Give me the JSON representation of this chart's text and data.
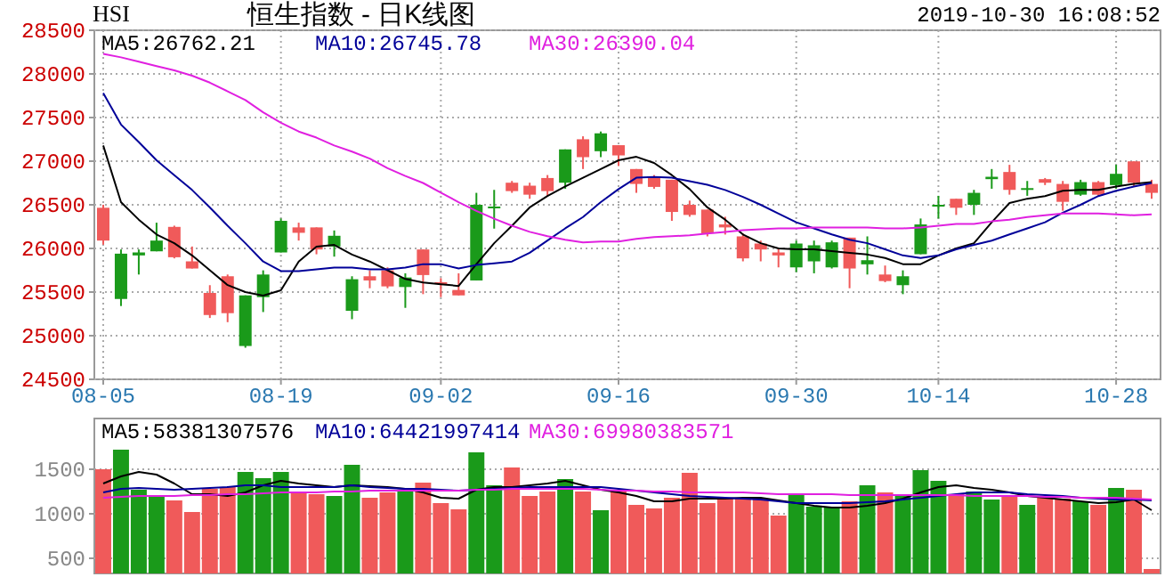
{
  "chart_data": [
    {
      "type": "candlestick",
      "title": "恒生指数 - 日K线图",
      "annotations": [
        "HSI",
        "2019-10-30 16:08:52"
      ],
      "categories": [
        "08-05",
        null,
        null,
        null,
        null,
        null,
        null,
        null,
        null,
        null,
        "08-19",
        null,
        null,
        null,
        null,
        null,
        null,
        null,
        null,
        "09-02",
        null,
        null,
        null,
        null,
        null,
        null,
        null,
        null,
        null,
        "09-16",
        null,
        null,
        null,
        null,
        null,
        null,
        null,
        null,
        null,
        "09-30",
        null,
        null,
        null,
        null,
        null,
        null,
        null,
        "10-14",
        null,
        null,
        null,
        null,
        null,
        null,
        null,
        null,
        null,
        "10-28",
        null,
        null
      ],
      "ohlc": [
        [
          26466,
          26500,
          26043,
          26090
        ],
        [
          25421,
          25988,
          25340,
          25940
        ],
        [
          25920,
          25988,
          25701,
          25954
        ],
        [
          25967,
          26295,
          25967,
          26090
        ],
        [
          26247,
          26261,
          25886,
          25899
        ],
        [
          25852,
          26022,
          25770,
          25770
        ],
        [
          25490,
          25579,
          25203,
          25237
        ],
        [
          25681,
          25701,
          25155,
          25258
        ],
        [
          24882,
          25462,
          24862,
          25462
        ],
        [
          25442,
          25749,
          25271,
          25701
        ],
        [
          25954,
          26343,
          25954,
          26316
        ],
        [
          26241,
          26295,
          26090,
          26179
        ],
        [
          26241,
          26241,
          25933,
          25988
        ],
        [
          26022,
          26206,
          25906,
          26145
        ],
        [
          25285,
          25681,
          25189,
          25647
        ],
        [
          25681,
          25749,
          25544,
          25633
        ],
        [
          25749,
          25783,
          25544,
          25565
        ],
        [
          25558,
          25715,
          25319,
          25667
        ],
        [
          25988,
          25988,
          25476,
          25695
        ],
        [
          25613,
          25660,
          25442,
          25592
        ],
        [
          25524,
          25715,
          25462,
          25462
        ],
        [
          25633,
          26637,
          25633,
          26500
        ],
        [
          26466,
          26671,
          26227,
          26480
        ],
        [
          26753,
          26773,
          26637,
          26657
        ],
        [
          26719,
          26753,
          26569,
          26616
        ],
        [
          26807,
          26841,
          26602,
          26657
        ],
        [
          26753,
          27135,
          26684,
          27135
        ],
        [
          27251,
          27285,
          26910,
          27046
        ],
        [
          27114,
          27340,
          27046,
          27319
        ],
        [
          27183,
          27183,
          26944,
          27066
        ],
        [
          26910,
          26910,
          26637,
          26739
        ],
        [
          26821,
          26841,
          26684,
          26705
        ],
        [
          26787,
          26787,
          26316,
          26418
        ],
        [
          26500,
          26548,
          26363,
          26384
        ],
        [
          26445,
          26445,
          26138,
          26172
        ],
        [
          26275,
          26363,
          26159,
          26241
        ],
        [
          26138,
          26172,
          25852,
          25886
        ],
        [
          26056,
          26090,
          25852,
          25988
        ],
        [
          25954,
          26002,
          25783,
          25920
        ],
        [
          25783,
          26090,
          25729,
          26056
        ],
        [
          25852,
          26090,
          25715,
          26036
        ],
        [
          25783,
          26090,
          25770,
          26070
        ],
        [
          26124,
          26124,
          25544,
          25770
        ],
        [
          25818,
          26138,
          25701,
          25865
        ],
        [
          25701,
          25804,
          25613,
          25626
        ],
        [
          25579,
          25749,
          25476,
          25681
        ],
        [
          25934,
          26343,
          25933,
          26275
        ],
        [
          26480,
          26603,
          26343,
          26500
        ],
        [
          26569,
          26569,
          26384,
          26466
        ],
        [
          26500,
          26671,
          26384,
          26637
        ],
        [
          26794,
          26910,
          26684,
          26821
        ],
        [
          26876,
          26958,
          26616,
          26671
        ],
        [
          26671,
          26773,
          26603,
          26691
        ],
        [
          26794,
          26807,
          26726,
          26753
        ],
        [
          26739,
          26773,
          26432,
          26534
        ],
        [
          26616,
          26787,
          26603,
          26760
        ],
        [
          26760,
          26773,
          26603,
          26616
        ],
        [
          26726,
          26958,
          26684,
          26855
        ],
        [
          26998,
          26998,
          26705,
          26753
        ],
        [
          26739,
          26787,
          26569,
          26637
        ]
      ],
      "colors": [
        "#f05a5a",
        "#1a9a1a",
        "#1a9a1a",
        "#1a9a1a",
        "#f05a5a",
        "#f05a5a",
        "#f05a5a",
        "#f05a5a",
        "#1a9a1a",
        "#1a9a1a",
        "#1a9a1a",
        "#f05a5a",
        "#f05a5a",
        "#1a9a1a",
        "#1a9a1a",
        "#f05a5a",
        "#f05a5a",
        "#1a9a1a",
        "#f05a5a",
        "#f05a5a",
        "#f05a5a",
        "#1a9a1a",
        "#1a9a1a",
        "#f05a5a",
        "#f05a5a",
        "#f05a5a",
        "#1a9a1a",
        "#f05a5a",
        "#1a9a1a",
        "#f05a5a",
        "#f05a5a",
        "#f05a5a",
        "#f05a5a",
        "#f05a5a",
        "#f05a5a",
        "#f05a5a",
        "#f05a5a",
        "#f05a5a",
        "#f05a5a",
        "#1a9a1a",
        "#1a9a1a",
        "#1a9a1a",
        "#f05a5a",
        "#1a9a1a",
        "#f05a5a",
        "#1a9a1a",
        "#1a9a1a",
        "#1a9a1a",
        "#f05a5a",
        "#1a9a1a",
        "#1a9a1a",
        "#f05a5a",
        "#1a9a1a",
        "#f05a5a",
        "#f05a5a",
        "#1a9a1a",
        "#f05a5a",
        "#1a9a1a",
        "#f05a5a",
        "#f05a5a"
      ],
      "series": [
        {
          "type": "line",
          "name": "MA5:26762.21",
          "color": "#000000",
          "values": [
            27180,
            26530,
            26330,
            26160,
            26060,
            25920,
            25750,
            25580,
            25500,
            25460,
            25520,
            25850,
            26020,
            26040,
            25930,
            25850,
            25750,
            25650,
            25610,
            25590,
            25570,
            25820,
            26060,
            26260,
            26470,
            26600,
            26710,
            26810,
            26910,
            27010,
            27050,
            26980,
            26840,
            26680,
            26470,
            26330,
            26160,
            26060,
            26000,
            25990,
            25990,
            25970,
            25950,
            25930,
            25890,
            25820,
            25820,
            25920,
            26000,
            26060,
            26300,
            26520,
            26570,
            26600,
            26660,
            26670,
            26670,
            26710,
            26740,
            26760
          ]
        },
        {
          "type": "line",
          "name": "MA10:26745.78",
          "color": "#000099",
          "values": [
            27780,
            27420,
            27220,
            27010,
            26840,
            26670,
            26470,
            26260,
            26060,
            25850,
            25740,
            25740,
            25760,
            25780,
            25780,
            25760,
            25760,
            25780,
            25820,
            25820,
            25770,
            25810,
            25830,
            25850,
            25950,
            26090,
            26230,
            26360,
            26530,
            26680,
            26810,
            26820,
            26810,
            26770,
            26730,
            26670,
            26590,
            26500,
            26400,
            26300,
            26230,
            26160,
            26100,
            26060,
            25990,
            25920,
            25890,
            25920,
            25990,
            26040,
            26090,
            26160,
            26230,
            26300,
            26410,
            26500,
            26600,
            26660,
            26710,
            26750
          ]
        },
        {
          "type": "line",
          "name": "MA30:26390.04",
          "color": "#e020e0",
          "values": [
            28230,
            28190,
            28140,
            28090,
            28040,
            27980,
            27900,
            27800,
            27700,
            27560,
            27440,
            27340,
            27270,
            27180,
            27110,
            27030,
            26920,
            26830,
            26750,
            26640,
            26530,
            26430,
            26340,
            26260,
            26190,
            26140,
            26100,
            26070,
            26080,
            26080,
            26110,
            26130,
            26140,
            26150,
            26170,
            26190,
            26210,
            26220,
            26230,
            26230,
            26240,
            26240,
            26240,
            26240,
            26230,
            26230,
            26240,
            26260,
            26280,
            26280,
            26310,
            26330,
            26360,
            26380,
            26400,
            26400,
            26400,
            26390,
            26380,
            26390
          ]
        }
      ],
      "ylim": [
        24500,
        28500
      ],
      "yticks": [
        24500,
        25000,
        25500,
        26000,
        26500,
        27000,
        27500,
        28000,
        28500
      ],
      "grid": true,
      "legend": "top left"
    },
    {
      "type": "bar",
      "categories": [
        null,
        null,
        null,
        null,
        null,
        null,
        null,
        null,
        null,
        null,
        null,
        null,
        null,
        null,
        null,
        null,
        null,
        null,
        null,
        null,
        null,
        null,
        null,
        null,
        null,
        null,
        null,
        null,
        null,
        null,
        null,
        null,
        null,
        null,
        null,
        null,
        null,
        null,
        null,
        null,
        null,
        null,
        null,
        null,
        null,
        null,
        null,
        null,
        null,
        null,
        null,
        null,
        null,
        null,
        null,
        null,
        null,
        null,
        null,
        null
      ],
      "values": [
        1500,
        1720,
        1270,
        1200,
        1150,
        1020,
        1280,
        1300,
        1470,
        1400,
        1470,
        1240,
        1220,
        1200,
        1550,
        1180,
        1240,
        1250,
        1350,
        1120,
        1050,
        1690,
        1320,
        1520,
        1200,
        1250,
        1390,
        1250,
        1040,
        1270,
        1100,
        1060,
        1180,
        1460,
        1120,
        1180,
        1170,
        1170,
        980,
        1220,
        1080,
        1070,
        1140,
        1320,
        1240,
        1200,
        1490,
        1370,
        1220,
        1250,
        1160,
        1200,
        1100,
        1200,
        1170,
        1140,
        1100,
        1290,
        1270,
        380
      ],
      "colors": [
        "#f05a5a",
        "#1a9a1a",
        "#1a9a1a",
        "#1a9a1a",
        "#f05a5a",
        "#f05a5a",
        "#f05a5a",
        "#f05a5a",
        "#1a9a1a",
        "#1a9a1a",
        "#1a9a1a",
        "#f05a5a",
        "#f05a5a",
        "#1a9a1a",
        "#1a9a1a",
        "#f05a5a",
        "#f05a5a",
        "#1a9a1a",
        "#f05a5a",
        "#f05a5a",
        "#f05a5a",
        "#1a9a1a",
        "#1a9a1a",
        "#f05a5a",
        "#f05a5a",
        "#f05a5a",
        "#1a9a1a",
        "#f05a5a",
        "#1a9a1a",
        "#f05a5a",
        "#f05a5a",
        "#f05a5a",
        "#f05a5a",
        "#f05a5a",
        "#f05a5a",
        "#f05a5a",
        "#f05a5a",
        "#f05a5a",
        "#f05a5a",
        "#1a9a1a",
        "#1a9a1a",
        "#1a9a1a",
        "#f05a5a",
        "#1a9a1a",
        "#f05a5a",
        "#1a9a1a",
        "#1a9a1a",
        "#1a9a1a",
        "#f05a5a",
        "#1a9a1a",
        "#1a9a1a",
        "#f05a5a",
        "#1a9a1a",
        "#f05a5a",
        "#f05a5a",
        "#1a9a1a",
        "#f05a5a",
        "#1a9a1a",
        "#f05a5a",
        "#f05a5a"
      ],
      "series": [
        {
          "type": "line",
          "name": "MA5:58381307576",
          "color": "#000000",
          "values": [
            1340,
            1420,
            1470,
            1440,
            1340,
            1220,
            1220,
            1200,
            1240,
            1320,
            1370,
            1340,
            1320,
            1300,
            1320,
            1310,
            1300,
            1280,
            1240,
            1180,
            1170,
            1270,
            1300,
            1300,
            1320,
            1340,
            1370,
            1320,
            1270,
            1240,
            1200,
            1140,
            1140,
            1170,
            1170,
            1170,
            1180,
            1180,
            1150,
            1120,
            1090,
            1070,
            1070,
            1090,
            1120,
            1170,
            1240,
            1300,
            1320,
            1290,
            1270,
            1240,
            1200,
            1180,
            1160,
            1140,
            1120,
            1130,
            1160,
            1040
          ]
        },
        {
          "type": "line",
          "name": "MA10:64421997414",
          "color": "#000099",
          "values": [
            1240,
            1280,
            1290,
            1280,
            1270,
            1280,
            1290,
            1300,
            1320,
            1320,
            1300,
            1300,
            1300,
            1300,
            1320,
            1300,
            1290,
            1280,
            1280,
            1270,
            1260,
            1270,
            1280,
            1290,
            1300,
            1300,
            1300,
            1300,
            1300,
            1280,
            1260,
            1240,
            1220,
            1200,
            1190,
            1180,
            1170,
            1160,
            1140,
            1120,
            1120,
            1120,
            1120,
            1130,
            1140,
            1160,
            1180,
            1200,
            1220,
            1240,
            1240,
            1240,
            1220,
            1210,
            1200,
            1180,
            1170,
            1160,
            1160,
            1150
          ]
        },
        {
          "type": "line",
          "name": "MA30:69980383571",
          "color": "#e020e0",
          "values": [
            1180,
            1190,
            1200,
            1200,
            1200,
            1210,
            1210,
            1220,
            1220,
            1230,
            1240,
            1240,
            1240,
            1250,
            1250,
            1260,
            1260,
            1260,
            1260,
            1260,
            1260,
            1270,
            1270,
            1280,
            1280,
            1280,
            1280,
            1280,
            1270,
            1260,
            1260,
            1250,
            1250,
            1240,
            1240,
            1240,
            1240,
            1230,
            1220,
            1220,
            1220,
            1220,
            1210,
            1210,
            1210,
            1210,
            1210,
            1210,
            1210,
            1200,
            1200,
            1200,
            1200,
            1190,
            1190,
            1180,
            1180,
            1180,
            1170,
            1160
          ]
        }
      ],
      "ylim": [
        330,
        2070
      ],
      "yticks": [
        500,
        1000,
        1500
      ],
      "grid": "y",
      "legend": "top left",
      "tick_labels": "y"
    }
  ]
}
